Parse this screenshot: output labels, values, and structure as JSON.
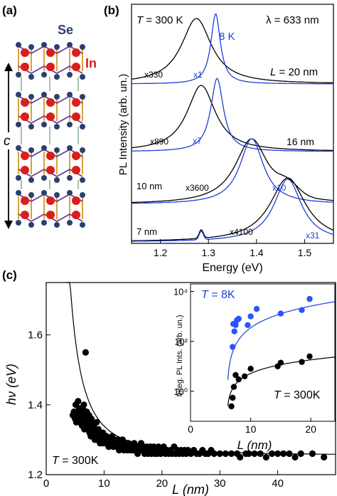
{
  "panel_labels": {
    "a": "(a)",
    "b": "(b)",
    "c": "(c)"
  },
  "colors": {
    "blue": "#1f3fd6",
    "black": "#000000",
    "se_atom": "#2b3f70",
    "in_atom": "#d91e1e",
    "bond_gold": "#d9a23a",
    "bond_purple": "#6a3d8f",
    "dot_blue": "#2a54ff"
  },
  "panel_a": {
    "se_label": "Se",
    "in_label": "In",
    "axis_label": "c",
    "layer_count": 4
  },
  "panel_b": {
    "temp_label": "T = 300 K",
    "wavelength_label": "λ = 633 nm",
    "label_8k": "8 K",
    "ylabel": "PL Intensity (arb. un.)",
    "xlabel": "Energy (eV)",
    "xticks": [
      "1.2",
      "1.3",
      "1.4",
      "1.5"
    ],
    "curve_labels": [
      {
        "text": "x330",
        "color": "black"
      },
      {
        "text": "x1",
        "color": "blue"
      },
      {
        "text": "L = 20 nm",
        "color": "black"
      },
      {
        "text": "x890",
        "color": "black"
      },
      {
        "text": "x7",
        "color": "blue"
      },
      {
        "text": "16 nm",
        "color": "black"
      },
      {
        "text": "10 nm",
        "color": "black"
      },
      {
        "text": "x3600",
        "color": "black"
      },
      {
        "text": "x10",
        "color": "blue"
      },
      {
        "text": "7 nm",
        "color": "black"
      },
      {
        "text": "x4100",
        "color": "black"
      },
      {
        "text": "x31",
        "color": "blue"
      }
    ]
  },
  "panel_c": {
    "ylabel": "hν (eV)",
    "xlabel": "L (nm)",
    "temp_label": "T = 300K",
    "yticks": [
      "1.2",
      "1.4",
      "1.6"
    ],
    "xticks": [
      "0",
      "10",
      "20",
      "30",
      "40"
    ],
    "inset": {
      "ylabel": "Integ. PL  Ints. (arb. un.)",
      "xlabel": "L (nm)",
      "label_8k": "T = 8K",
      "label_300k": "T = 300K",
      "xticks": [
        "0",
        "10",
        "20"
      ],
      "yticks": [
        "10⁰",
        "10²",
        "10⁴"
      ]
    }
  },
  "chart_data": [
    {
      "type": "line",
      "title": "",
      "xlabel": "Energy (eV)",
      "ylabel": "PL Intensity (arb. un.)",
      "xlim": [
        1.14,
        1.56
      ],
      "grid": false,
      "series": [
        {
          "name": "L = 20 nm, 300 K (x330)",
          "color": "black",
          "peak": 1.275,
          "width": 0.038,
          "amp": 1.0,
          "offset": 0.0
        },
        {
          "name": "L = 20 nm, 8 K (x1)",
          "color": "blue",
          "peak": 1.315,
          "width": 0.012,
          "amp": 1.05,
          "offset": 0.0
        },
        {
          "name": "L = 16 nm, 300 K (x890)",
          "color": "black",
          "peak": 1.285,
          "width": 0.036,
          "amp": 1.0,
          "offset": 0.0
        },
        {
          "name": "L = 16 nm, 8 K (x7)",
          "color": "blue",
          "peak": 1.318,
          "width": 0.016,
          "amp": 1.05,
          "offset": 0.0
        },
        {
          "name": "L = 10 nm, 300 K (x3600)",
          "color": "black",
          "peak": 1.39,
          "width": 0.042,
          "amp": 1.0,
          "offset": 0.0
        },
        {
          "name": "L = 10 nm, 8 K (x10)",
          "color": "blue",
          "peak": 1.39,
          "width": 0.03,
          "amp": 1.0,
          "offset": 0.0
        },
        {
          "name": "L = 7 nm, 300 K (x4100)",
          "color": "black",
          "peak": 1.465,
          "width": 0.045,
          "amp": 1.0,
          "offset": 0.0
        },
        {
          "name": "L = 7 nm, 8 K (x31)",
          "color": "blue",
          "peak": 1.465,
          "width": 0.035,
          "amp": 0.98,
          "offset": 0.0
        }
      ]
    },
    {
      "type": "scatter",
      "title": "",
      "xlabel": "L (nm)",
      "ylabel": "hν (eV)",
      "xlim": [
        0,
        50
      ],
      "ylim": [
        1.2,
        1.75
      ],
      "fit_curve": {
        "E0": 1.255,
        "A": 8.4,
        "color": "black"
      },
      "points": [
        [
          4.6,
          1.37
        ],
        [
          4.8,
          1.38
        ],
        [
          5.0,
          1.36
        ],
        [
          5.1,
          1.4
        ],
        [
          5.2,
          1.35
        ],
        [
          5.3,
          1.37
        ],
        [
          5.4,
          1.38
        ],
        [
          5.5,
          1.41
        ],
        [
          5.6,
          1.36
        ],
        [
          5.7,
          1.39
        ],
        [
          5.8,
          1.35
        ],
        [
          5.9,
          1.38
        ],
        [
          6.0,
          1.37
        ],
        [
          6.1,
          1.36
        ],
        [
          6.2,
          1.34
        ],
        [
          6.3,
          1.39
        ],
        [
          6.4,
          1.36
        ],
        [
          6.5,
          1.4
        ],
        [
          6.6,
          1.33
        ],
        [
          6.7,
          1.37
        ],
        [
          6.8,
          1.55
        ],
        [
          6.9,
          1.35
        ],
        [
          7.0,
          1.38
        ],
        [
          7.1,
          1.34
        ],
        [
          7.2,
          1.36
        ],
        [
          7.3,
          1.33
        ],
        [
          7.4,
          1.37
        ],
        [
          7.5,
          1.32
        ],
        [
          7.6,
          1.35
        ],
        [
          7.7,
          1.31
        ],
        [
          7.8,
          1.36
        ],
        [
          7.9,
          1.33
        ],
        [
          8.0,
          1.35
        ],
        [
          8.1,
          1.31
        ],
        [
          8.2,
          1.34
        ],
        [
          8.3,
          1.32
        ],
        [
          8.4,
          1.3
        ],
        [
          8.5,
          1.33
        ],
        [
          8.6,
          1.31
        ],
        [
          8.7,
          1.35
        ],
        [
          8.8,
          1.3
        ],
        [
          8.9,
          1.32
        ],
        [
          9.0,
          1.33
        ],
        [
          9.1,
          1.3
        ],
        [
          9.2,
          1.31
        ],
        [
          9.3,
          1.29
        ],
        [
          9.4,
          1.32
        ],
        [
          9.5,
          1.3
        ],
        [
          9.6,
          1.31
        ],
        [
          9.7,
          1.29
        ],
        [
          9.8,
          1.32
        ],
        [
          9.9,
          1.3
        ],
        [
          10.0,
          1.31
        ],
        [
          10.2,
          1.29
        ],
        [
          10.4,
          1.31
        ],
        [
          10.6,
          1.3
        ],
        [
          10.8,
          1.28
        ],
        [
          11.0,
          1.3
        ],
        [
          11.2,
          1.29
        ],
        [
          11.4,
          1.31
        ],
        [
          11.6,
          1.28
        ],
        [
          11.8,
          1.3
        ],
        [
          12.0,
          1.29
        ],
        [
          12.2,
          1.28
        ],
        [
          12.4,
          1.3
        ],
        [
          12.6,
          1.27
        ],
        [
          12.8,
          1.29
        ],
        [
          13.0,
          1.28
        ],
        [
          13.2,
          1.3
        ],
        [
          13.4,
          1.27
        ],
        [
          13.6,
          1.29
        ],
        [
          13.8,
          1.28
        ],
        [
          14.0,
          1.27
        ],
        [
          14.2,
          1.29
        ],
        [
          14.4,
          1.28
        ],
        [
          14.6,
          1.27
        ],
        [
          14.8,
          1.28
        ],
        [
          15.0,
          1.27
        ],
        [
          15.2,
          1.29
        ],
        [
          15.4,
          1.27
        ],
        [
          15.6,
          1.28
        ],
        [
          15.8,
          1.26
        ],
        [
          16.0,
          1.28
        ],
        [
          16.2,
          1.27
        ],
        [
          16.4,
          1.29
        ],
        [
          16.6,
          1.27
        ],
        [
          16.8,
          1.28
        ],
        [
          17.0,
          1.26
        ],
        [
          17.2,
          1.27
        ],
        [
          17.4,
          1.28
        ],
        [
          17.6,
          1.26
        ],
        [
          17.8,
          1.27
        ],
        [
          18.0,
          1.28
        ],
        [
          18.2,
          1.26
        ],
        [
          18.4,
          1.27
        ],
        [
          18.6,
          1.28
        ],
        [
          18.8,
          1.26
        ],
        [
          19.0,
          1.27
        ],
        [
          19.2,
          1.26
        ],
        [
          19.4,
          1.28
        ],
        [
          19.6,
          1.27
        ],
        [
          19.8,
          1.26
        ],
        [
          20.0,
          1.27
        ],
        [
          20.3,
          1.28
        ],
        [
          20.6,
          1.26
        ],
        [
          20.9,
          1.27
        ],
        [
          21.2,
          1.26
        ],
        [
          21.5,
          1.27
        ],
        [
          21.8,
          1.26
        ],
        [
          22.1,
          1.28
        ],
        [
          22.4,
          1.26
        ],
        [
          22.7,
          1.27
        ],
        [
          23.0,
          1.26
        ],
        [
          23.3,
          1.27
        ],
        [
          23.6,
          1.26
        ],
        [
          23.9,
          1.27
        ],
        [
          24.2,
          1.26
        ],
        [
          24.5,
          1.27
        ],
        [
          25.0,
          1.26
        ],
        [
          25.5,
          1.27
        ],
        [
          26.0,
          1.26
        ],
        [
          26.5,
          1.26
        ],
        [
          27.0,
          1.27
        ],
        [
          27.5,
          1.26
        ],
        [
          28.0,
          1.26
        ],
        [
          28.5,
          1.27
        ],
        [
          29.0,
          1.26
        ],
        [
          30.0,
          1.26
        ],
        [
          31.0,
          1.26
        ],
        [
          32.0,
          1.26
        ],
        [
          33.0,
          1.26
        ],
        [
          33.5,
          1.25
        ],
        [
          34.5,
          1.26
        ],
        [
          35.0,
          1.26
        ],
        [
          36.0,
          1.26
        ],
        [
          37.0,
          1.26
        ],
        [
          38.0,
          1.25
        ],
        [
          39.0,
          1.26
        ],
        [
          40.0,
          1.26
        ],
        [
          41.0,
          1.26
        ],
        [
          42.0,
          1.26
        ],
        [
          43.0,
          1.25
        ],
        [
          44.0,
          1.26
        ],
        [
          46.0,
          1.26
        ],
        [
          48.0,
          1.25
        ]
      ]
    },
    {
      "type": "scatter",
      "title": "",
      "xlabel": "L (nm)",
      "ylabel": "Integ. PL  Ints. (arb. un.)",
      "xlim": [
        0,
        24
      ],
      "ylog": true,
      "ylim_log10": [
        -1.2,
        4.3
      ],
      "series": [
        {
          "name": "T = 8K",
          "color": "blue",
          "points": [
            [
              7.0,
              60
            ],
            [
              7.1,
              500
            ],
            [
              7.3,
              250
            ],
            [
              7.5,
              450
            ],
            [
              7.7,
              700
            ],
            [
              8.0,
              800
            ],
            [
              9.5,
              450
            ],
            [
              10.0,
              1000
            ],
            [
              11.0,
              2000
            ],
            [
              15.0,
              1300
            ],
            [
              18.5,
              1800
            ],
            [
              19.8,
              5000
            ]
          ],
          "fit": {
            "a": 38,
            "b": 1.6
          }
        },
        {
          "name": "T = 300K",
          "color": "black",
          "points": [
            [
              6.8,
              0.25
            ],
            [
              7.0,
              0.55
            ],
            [
              7.2,
              1.5
            ],
            [
              7.5,
              4.5
            ],
            [
              8.0,
              3.0
            ],
            [
              9.0,
              4.0
            ],
            [
              10.0,
              8.0
            ],
            [
              14.5,
              10
            ],
            [
              15.0,
              14
            ],
            [
              18.5,
              15
            ],
            [
              19.8,
              25
            ]
          ],
          "fit": {
            "a": 1.3,
            "b": 1.0
          }
        }
      ]
    }
  ]
}
